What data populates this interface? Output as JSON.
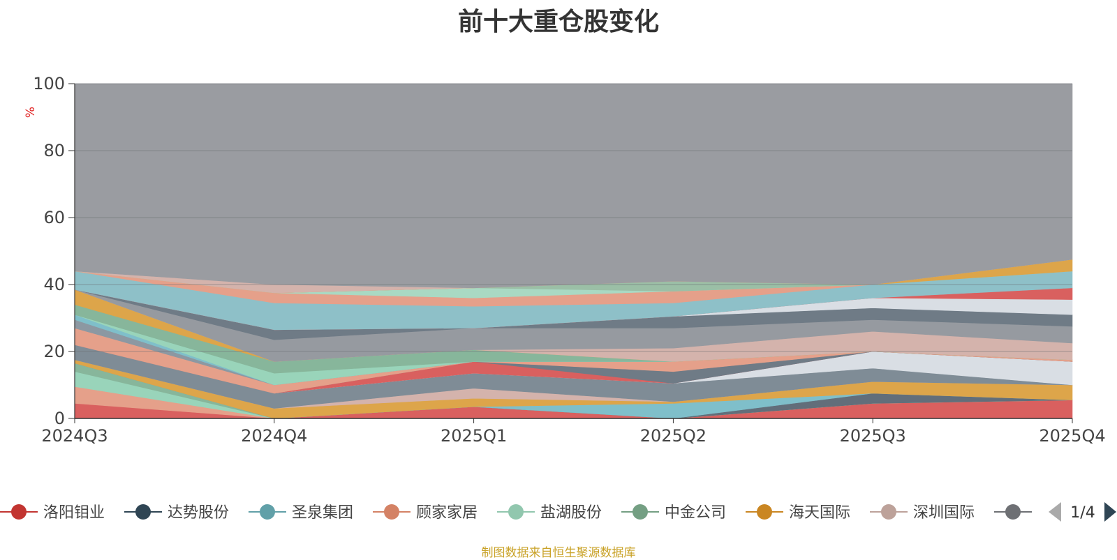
{
  "chart_data": {
    "type": "area",
    "title": "前十大重仓股变化",
    "ylabel": "%",
    "ylim": [
      0,
      100
    ],
    "yticks": [
      0,
      20,
      40,
      60,
      80,
      100
    ],
    "x": [
      "2024Q3",
      "2024Q4",
      "2025Q1",
      "2025Q2",
      "2025Q3",
      "2025Q4"
    ],
    "grid": true,
    "legend_position": "bottom",
    "legend_page": "1/4",
    "bands": [
      {
        "color": "#d9605f",
        "lower": [
          0,
          0,
          0,
          0,
          0,
          0
        ],
        "upper": [
          4.5,
          0,
          3.5,
          0,
          4.5,
          5.5
        ]
      },
      {
        "color": "#e5a08a",
        "lower": [
          4.5,
          0,
          3.5,
          0,
          4.5,
          5.5
        ],
        "upper": [
          9.5,
          0,
          3.5,
          0,
          4.5,
          5.5
        ]
      },
      {
        "color": "#99d4ba",
        "lower": [
          9.5,
          0,
          3.5,
          0,
          4.5,
          5.5
        ],
        "upper": [
          14,
          0,
          3.5,
          0,
          4.5,
          5.5
        ]
      },
      {
        "color": "#87b69b",
        "lower": [
          14,
          0,
          3.5,
          0,
          4.5,
          5.5
        ],
        "upper": [
          16.5,
          0,
          3.5,
          0,
          4.5,
          5.5
        ]
      },
      {
        "color": "#626e7a",
        "lower": [
          16.5,
          0,
          3.5,
          0,
          4.5,
          5.5
        ],
        "upper": [
          16.5,
          0,
          3.5,
          0,
          7.5,
          5.5
        ]
      },
      {
        "color": "#7fbfca",
        "lower": [
          16.5,
          0,
          3.5,
          0,
          7.5,
          5.5
        ],
        "upper": [
          16.5,
          0,
          3.5,
          4.5,
          7.5,
          5.5
        ]
      },
      {
        "color": "#dda54a",
        "lower": [
          16.5,
          0,
          3.5,
          4.5,
          7.5,
          5.5
        ],
        "upper": [
          17.5,
          3,
          6,
          5,
          11,
          10
        ]
      },
      {
        "color": "#d4b3ac",
        "lower": [
          17.5,
          3,
          6,
          5,
          11,
          10
        ],
        "upper": [
          17.5,
          3,
          9,
          5,
          11,
          10
        ]
      },
      {
        "color": "#7f8c96",
        "lower": [
          17.5,
          3,
          9,
          5,
          11,
          10
        ],
        "upper": [
          22,
          7.5,
          13.5,
          10.5,
          15,
          10
        ]
      },
      {
        "color": "#d9dee4",
        "lower": [
          22,
          7.5,
          13.5,
          10.5,
          15,
          10
        ],
        "upper": [
          22,
          7.5,
          13.5,
          10.5,
          20,
          17
        ]
      },
      {
        "color": "#d9605f",
        "lower": [
          22,
          7.5,
          13.5,
          10.5,
          20,
          17
        ],
        "upper": [
          22,
          7.5,
          17,
          10.5,
          20,
          17
        ]
      },
      {
        "color": "#6f7b86",
        "lower": [
          22,
          7.5,
          17,
          10.5,
          20,
          17
        ],
        "upper": [
          22,
          7.5,
          17,
          14,
          20,
          17
        ]
      },
      {
        "color": "#e5a08a",
        "lower": [
          22,
          7.5,
          17,
          14,
          20,
          17
        ],
        "upper": [
          27,
          10,
          17,
          17,
          20,
          17.5
        ]
      },
      {
        "color": "#8c98a2",
        "lower": [
          27,
          10,
          17,
          17,
          20,
          17.5
        ],
        "upper": [
          29.5,
          10,
          17,
          17,
          20,
          17.5
        ]
      },
      {
        "color": "#7fbfca",
        "lower": [
          29.5,
          10,
          17,
          17,
          20,
          17.5
        ],
        "upper": [
          31,
          10,
          17,
          17,
          20,
          17.5
        ]
      },
      {
        "color": "#99d4ba",
        "lower": [
          31,
          10,
          17,
          17,
          20,
          17.5
        ],
        "upper": [
          31,
          13.5,
          17,
          17,
          20,
          17.5
        ]
      },
      {
        "color": "#87b69b",
        "lower": [
          31,
          13.5,
          17,
          17,
          20,
          17.5
        ],
        "upper": [
          34,
          17,
          20.5,
          17,
          20,
          17.5
        ]
      },
      {
        "color": "#dda54a",
        "lower": [
          34,
          17,
          20.5,
          17,
          20,
          17.5
        ],
        "upper": [
          38.5,
          17,
          20.5,
          17,
          20,
          17.5
        ]
      },
      {
        "color": "#d4b3ac",
        "lower": [
          38.5,
          17,
          20.5,
          17,
          20,
          17.5
        ],
        "upper": [
          38.5,
          17,
          20.5,
          21,
          26,
          22.5
        ]
      },
      {
        "color": "#969aa0",
        "lower": [
          38.5,
          17,
          20.5,
          21,
          26,
          22.5
        ],
        "upper": [
          38.5,
          23.5,
          27,
          27,
          29.5,
          27.5
        ]
      },
      {
        "color": "#6f7b86",
        "lower": [
          38.5,
          23.5,
          27,
          27,
          29.5,
          27.5
        ],
        "upper": [
          38.5,
          26.5,
          27,
          30.5,
          33,
          31
        ]
      },
      {
        "color": "#d9dee4",
        "lower": [
          38.5,
          26.5,
          27,
          30.5,
          33,
          31
        ],
        "upper": [
          38.5,
          26.5,
          27,
          30.5,
          36,
          35.5
        ]
      },
      {
        "color": "#d9605f",
        "lower": [
          38.5,
          26.5,
          27,
          30.5,
          36,
          35.5
        ],
        "upper": [
          38.5,
          26.5,
          27,
          30.5,
          36,
          39
        ]
      },
      {
        "color": "#8ec0c8",
        "lower": [
          38.5,
          26.5,
          27,
          30.5,
          36,
          39
        ],
        "upper": [
          44,
          34.5,
          33.5,
          34.5,
          40,
          44
        ]
      },
      {
        "color": "#e5a08a",
        "lower": [
          44,
          34.5,
          33.5,
          34.5,
          40,
          44
        ],
        "upper": [
          44,
          37.5,
          36,
          38,
          40,
          44
        ]
      },
      {
        "color": "#a9d9c3",
        "lower": [
          44,
          37.5,
          36,
          38,
          40,
          44
        ],
        "upper": [
          44,
          37.5,
          39,
          38,
          40,
          44
        ]
      },
      {
        "color": "#9bbfa6",
        "lower": [
          44,
          37.5,
          39,
          38,
          40,
          44
        ],
        "upper": [
          44,
          37.5,
          39,
          41,
          40,
          44
        ]
      },
      {
        "color": "#dda54a",
        "lower": [
          44,
          37.5,
          39,
          41,
          40,
          44
        ],
        "upper": [
          44,
          37.5,
          39,
          41,
          40,
          47.5
        ]
      },
      {
        "color": "#d4b3ac",
        "lower": [
          44,
          37.5,
          39,
          41,
          40,
          47.5
        ],
        "upper": [
          44,
          40,
          39,
          41,
          40,
          47.5
        ]
      },
      {
        "color": "#9a9ca1",
        "lower": [
          44,
          40,
          39,
          41,
          40,
          47.5
        ],
        "upper": [
          100,
          100,
          100,
          100,
          100,
          100
        ]
      }
    ],
    "legend": [
      {
        "name": "洛阳钼业",
        "color": "#c23531"
      },
      {
        "name": "达势股份",
        "color": "#2f4554"
      },
      {
        "name": "圣泉集团",
        "color": "#61a0a8"
      },
      {
        "name": "顾家家居",
        "color": "#d48265"
      },
      {
        "name": "盐湖股份",
        "color": "#91c7ae"
      },
      {
        "name": "中金公司",
        "color": "#749f83"
      },
      {
        "name": "海天国际",
        "color": "#ca8622"
      },
      {
        "name": "深圳国际",
        "color": "#bda29a"
      },
      {
        "name": "",
        "color": "#6e7074"
      }
    ],
    "source": "制图数据来自恒生聚源数据库"
  }
}
